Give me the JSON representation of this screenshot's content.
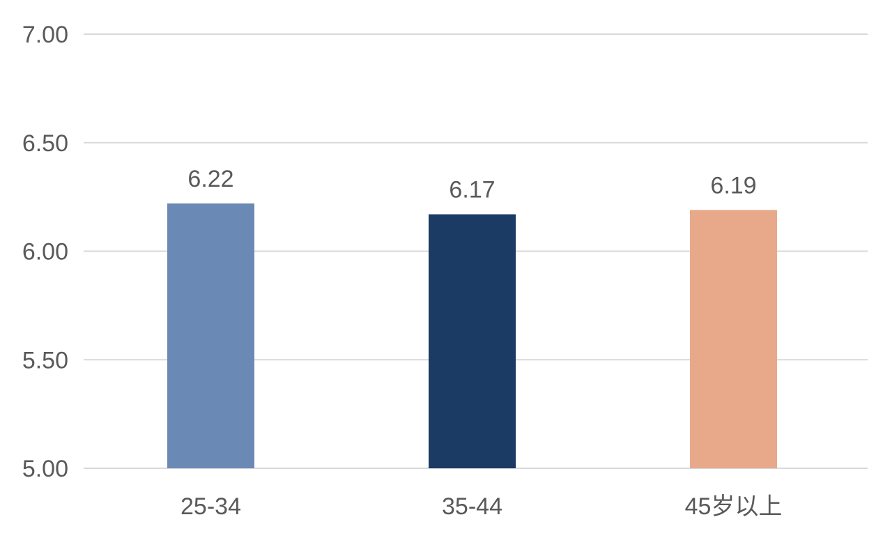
{
  "chart_data": {
    "type": "bar",
    "categories": [
      "25-34",
      "35-44",
      "45岁以上"
    ],
    "values": [
      6.22,
      6.17,
      6.19
    ],
    "data_labels": [
      "6.22",
      "6.17",
      "6.19"
    ],
    "bar_colors": [
      "#6a8ab5",
      "#1b3a64",
      "#e8a88a"
    ],
    "ylim": [
      5.0,
      7.0
    ],
    "yticks": [
      5.0,
      5.5,
      6.0,
      6.5,
      7.0
    ],
    "ytick_labels": [
      "5.00",
      "5.50",
      "6.00",
      "6.50",
      "7.00"
    ],
    "grid": true,
    "gridline_color": "#d9d9d9",
    "text_color": "#595959",
    "title": "",
    "xlabel": "",
    "ylabel": ""
  }
}
